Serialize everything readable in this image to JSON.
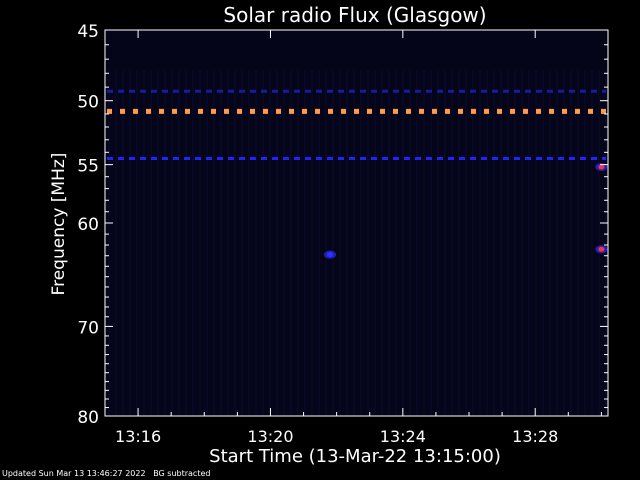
{
  "chart_data": {
    "type": "heatmap",
    "title": "Solar radio Flux (Glasgow)",
    "xlabel": "Start Time (13-Mar-22 13:15:00)",
    "ylabel": "Frequency [MHz]",
    "x_ticks": [
      "13:16",
      "13:20",
      "13:24",
      "13:28"
    ],
    "x_tick_minutes": [
      16,
      20,
      24,
      28
    ],
    "xlim_minutes": [
      15.0,
      30.2
    ],
    "y_ticks": [
      45,
      50,
      55,
      60,
      70,
      80
    ],
    "ylim": [
      45,
      80
    ],
    "y_scale": "log",
    "grid": false,
    "features": [
      {
        "kind": "dashed_band",
        "freq": 50.8,
        "color": "#ff9a4a"
      },
      {
        "kind": "dashed_band",
        "freq": 54.5,
        "color": "#2222ff"
      },
      {
        "kind": "dashed_band",
        "freq": 49.3,
        "color": "#1a1aa0"
      },
      {
        "kind": "hotspot",
        "minute": 30.0,
        "freq": 55.2,
        "color": "#ff3030"
      },
      {
        "kind": "hotspot",
        "minute": 30.0,
        "freq": 62.4,
        "color": "#ff3030"
      },
      {
        "kind": "hotspot",
        "minute": 21.8,
        "freq": 62.9,
        "color": "#3030ff"
      }
    ]
  },
  "footer": {
    "updated": "Updated Sun Mar 13 13:46:27 2022",
    "note": "BG subtracted"
  }
}
